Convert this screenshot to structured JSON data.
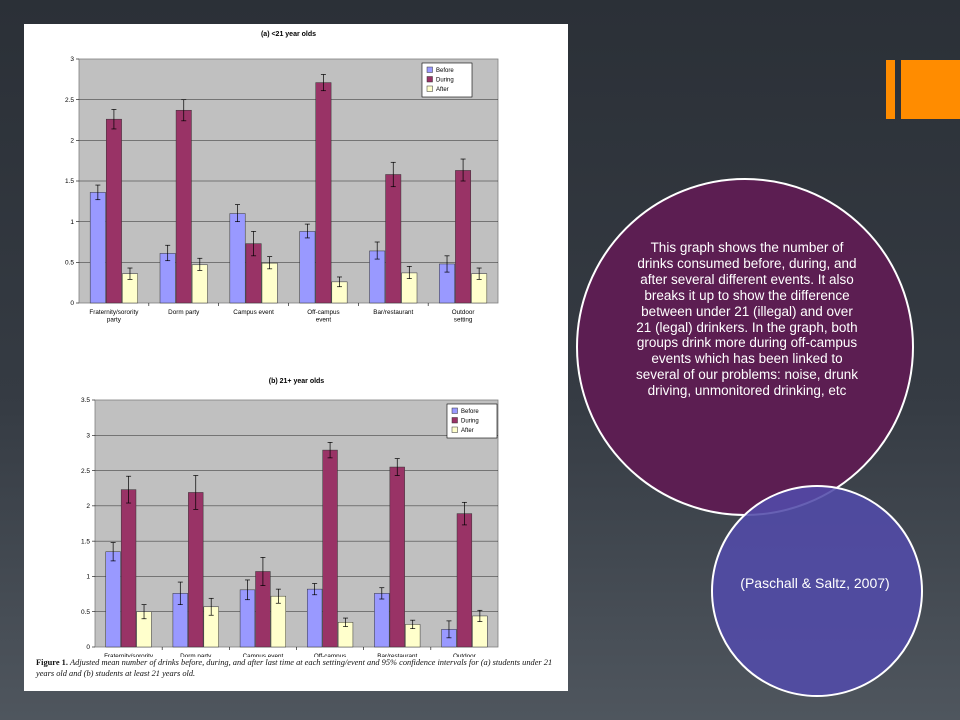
{
  "slide": {
    "description": "This graph shows the number of drinks consumed before, during, and after several different events. It also breaks it up to show the difference between under 21 (illegal) and over 21 (legal) drinkers. In the graph, both groups drink more during off-campus events which has been linked to several of our problems: noise, drunk driving, unmonitored drinking, etc",
    "citation": "(Paschall & Saltz, 2007)",
    "colors": {
      "accent": "#ff8c00",
      "circle_large": "#5c1e52",
      "circle_small": "#524baa",
      "background": "#2f343b"
    }
  },
  "figure": {
    "caption_label": "Figure 1.",
    "caption_text": "Adjusted mean number of drinks before, during, and after last time at each setting/event and 95% confidence intervals for (a) students under 21 years old and (b) students at least 21 years old."
  },
  "chart_data": [
    {
      "type": "bar",
      "title": "(a) <21 year olds",
      "categories": [
        "Fraternity/sorority party",
        "Dorm party",
        "Campus event",
        "Off-campus event",
        "Bar/restaurant",
        "Outdoor setting"
      ],
      "series": [
        {
          "name": "Before",
          "color": "#9999ff",
          "values": [
            1.36,
            0.61,
            1.1,
            0.88,
            0.64,
            0.48
          ],
          "ci_low": [
            1.27,
            0.52,
            1.0,
            0.8,
            0.54,
            0.38
          ],
          "ci_high": [
            1.45,
            0.71,
            1.21,
            0.97,
            0.75,
            0.58
          ]
        },
        {
          "name": "During",
          "color": "#993366",
          "values": [
            2.26,
            2.37,
            0.73,
            2.71,
            1.58,
            1.63
          ],
          "ci_low": [
            2.14,
            2.24,
            0.58,
            2.61,
            1.43,
            1.5
          ],
          "ci_high": [
            2.38,
            2.5,
            0.88,
            2.81,
            1.73,
            1.77
          ]
        },
        {
          "name": "After",
          "color": "#ffffcc",
          "values": [
            0.36,
            0.47,
            0.49,
            0.26,
            0.37,
            0.36
          ],
          "ci_low": [
            0.29,
            0.4,
            0.42,
            0.2,
            0.3,
            0.29
          ],
          "ci_high": [
            0.43,
            0.55,
            0.57,
            0.32,
            0.45,
            0.43
          ]
        }
      ],
      "ylim": [
        0,
        3
      ],
      "yticks": [
        0,
        0.5,
        1,
        1.5,
        2,
        2.5,
        3
      ],
      "grid": true,
      "legend": "top-right"
    },
    {
      "type": "bar",
      "title": "(b) 21+ year olds",
      "categories": [
        "Fraternity/sorority party",
        "Dorm party",
        "Campus event",
        "Off-campus event",
        "Bar/restaurant",
        "Outdoor setting"
      ],
      "series": [
        {
          "name": "Before",
          "color": "#9999ff",
          "values": [
            1.35,
            0.76,
            0.81,
            0.82,
            0.76,
            0.25
          ],
          "ci_low": [
            1.22,
            0.6,
            0.67,
            0.74,
            0.68,
            0.13
          ],
          "ci_high": [
            1.48,
            0.92,
            0.95,
            0.9,
            0.84,
            0.37
          ]
        },
        {
          "name": "During",
          "color": "#993366",
          "values": [
            2.23,
            2.19,
            1.07,
            2.79,
            2.55,
            1.89
          ],
          "ci_low": [
            2.04,
            1.95,
            0.87,
            2.68,
            2.43,
            1.73
          ],
          "ci_high": [
            2.42,
            2.43,
            1.27,
            2.9,
            2.67,
            2.05
          ]
        },
        {
          "name": "After",
          "color": "#ffffcc",
          "values": [
            0.5,
            0.57,
            0.72,
            0.35,
            0.32,
            0.44
          ],
          "ci_low": [
            0.4,
            0.45,
            0.62,
            0.29,
            0.26,
            0.36
          ],
          "ci_high": [
            0.6,
            0.69,
            0.82,
            0.41,
            0.38,
            0.52
          ]
        }
      ],
      "ylim": [
        0,
        3.5
      ],
      "yticks": [
        0,
        0.5,
        1,
        1.5,
        2,
        2.5,
        3,
        3.5
      ],
      "grid": true,
      "legend": "top-right"
    }
  ]
}
